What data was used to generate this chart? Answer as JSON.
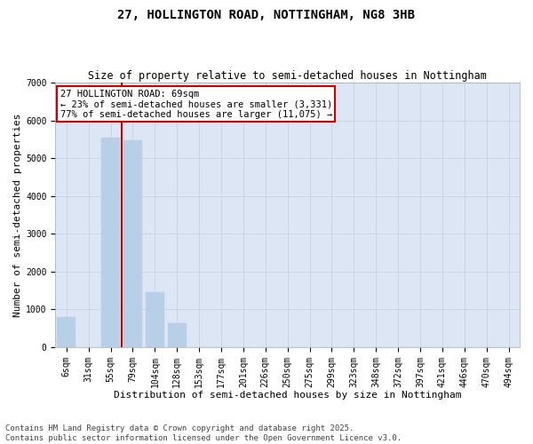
{
  "title": "27, HOLLINGTON ROAD, NOTTINGHAM, NG8 3HB",
  "subtitle": "Size of property relative to semi-detached houses in Nottingham",
  "xlabel": "Distribution of semi-detached houses by size in Nottingham",
  "ylabel": "Number of semi-detached properties",
  "categories": [
    "6sqm",
    "31sqm",
    "55sqm",
    "79sqm",
    "104sqm",
    "128sqm",
    "153sqm",
    "177sqm",
    "201sqm",
    "226sqm",
    "250sqm",
    "275sqm",
    "299sqm",
    "323sqm",
    "348sqm",
    "372sqm",
    "397sqm",
    "421sqm",
    "446sqm",
    "470sqm",
    "494sqm"
  ],
  "values": [
    800,
    0,
    5550,
    5480,
    1450,
    630,
    0,
    0,
    0,
    0,
    0,
    0,
    0,
    0,
    0,
    0,
    0,
    0,
    0,
    0,
    0
  ],
  "bar_color": "#b8cfe8",
  "bar_edge_color": "#b8cfe8",
  "vline_color": "#cc0000",
  "annotation_text": "27 HOLLINGTON ROAD: 69sqm\n← 23% of semi-detached houses are smaller (3,331)\n77% of semi-detached houses are larger (11,075) →",
  "annotation_box_facecolor": "#ffffff",
  "annotation_box_edgecolor": "#cc0000",
  "ylim": [
    0,
    7000
  ],
  "yticks": [
    0,
    1000,
    2000,
    3000,
    4000,
    5000,
    6000,
    7000
  ],
  "grid_color": "#c8d4e8",
  "bg_color": "#dce6f4",
  "footer": "Contains HM Land Registry data © Crown copyright and database right 2025.\nContains public sector information licensed under the Open Government Licence v3.0.",
  "title_fontsize": 10,
  "subtitle_fontsize": 8.5,
  "axis_label_fontsize": 8,
  "tick_fontsize": 7,
  "annotation_fontsize": 7.5,
  "footer_fontsize": 6.5
}
